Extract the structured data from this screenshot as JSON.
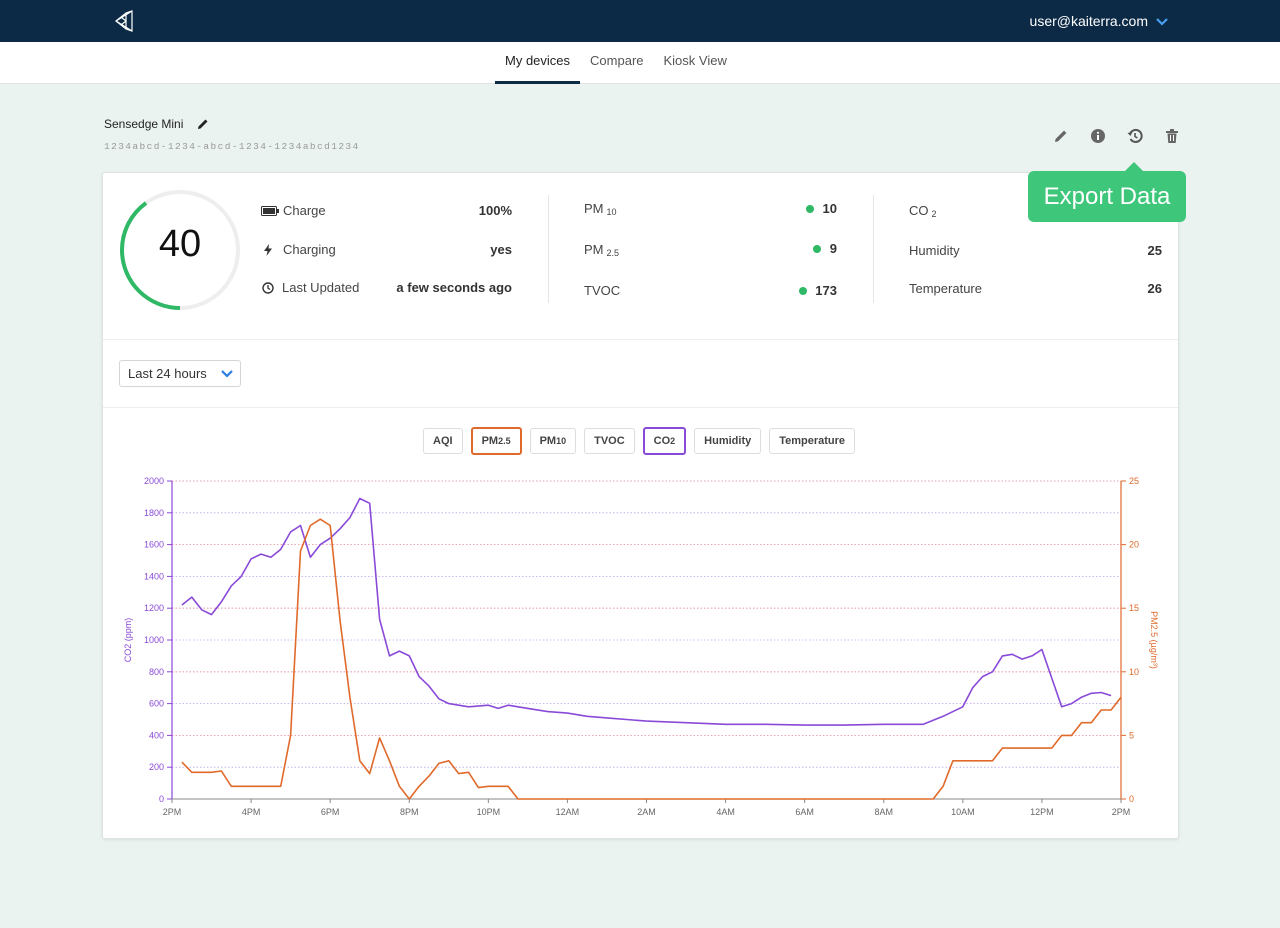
{
  "header": {
    "logo_icon": "kaiterra-logo-icon",
    "user_email": "user@kaiterra.com"
  },
  "nav": {
    "tabs": [
      {
        "label": "My devices",
        "active": true
      },
      {
        "label": "Compare",
        "active": false
      },
      {
        "label": "Kiosk View",
        "active": false
      }
    ]
  },
  "device": {
    "name": "Sensedge Mini",
    "id": "1234abcd-1234-abcd-1234-1234abcd1234"
  },
  "actions": [
    "edit-icon",
    "info-icon",
    "history-icon",
    "trash-icon"
  ],
  "tooltip": "Export Data",
  "gauge": {
    "value": "40",
    "fill_fraction": 0.4,
    "color": "#2fb865"
  },
  "status": {
    "charge_label": "Charge",
    "charge_value": "100%",
    "charging_label": "Charging",
    "charging_value": "yes",
    "updated_label": "Last Updated",
    "updated_value": "a few seconds ago"
  },
  "readings": {
    "pm10_label": "PM",
    "pm10_sub": "10",
    "pm10_value": "10",
    "pm25_label": "PM",
    "pm25_sub": "2.5",
    "pm25_value": "9",
    "tvoc_label": "TVOC",
    "tvoc_value": "173",
    "co2_label": "CO",
    "co2_sub": "2",
    "co2_value": "",
    "humidity_label": "Humidity",
    "humidity_value": "25",
    "temperature_label": "Temperature",
    "temperature_value": "26"
  },
  "range_select": {
    "label": "Last 24 hours"
  },
  "chips": {
    "aqi": "AQI",
    "pm25_main": "PM",
    "pm25_sub": "2.5",
    "pm10_main": "PM",
    "pm10_sub": "10",
    "tvoc": "TVOC",
    "co2_main": "CO",
    "co2_sub": "2",
    "humidity": "Humidity",
    "temperature": "Temperature"
  },
  "chart_data": {
    "type": "line",
    "x_ticks": [
      "2PM",
      "4PM",
      "6PM",
      "8PM",
      "10PM",
      "12AM",
      "2AM",
      "4AM",
      "6AM",
      "8AM",
      "10AM",
      "12PM",
      "2PM"
    ],
    "y_left": {
      "label": "CO2 (ppm)",
      "min": 0,
      "max": 2000,
      "ticks": [
        0,
        200,
        400,
        600,
        800,
        1000,
        1200,
        1400,
        1600,
        1800,
        2000
      ]
    },
    "y_right": {
      "label": "PM2.5 (µg/m³)",
      "min": 0,
      "max": 25,
      "ticks": [
        0,
        5,
        10,
        15,
        20,
        25
      ]
    },
    "x_range_hours": [
      0,
      24
    ],
    "series": [
      {
        "name": "CO2",
        "axis": "left",
        "color": "#8a4ad8",
        "points": [
          [
            0.25,
            1220
          ],
          [
            0.5,
            1270
          ],
          [
            0.75,
            1190
          ],
          [
            1.0,
            1160
          ],
          [
            1.25,
            1240
          ],
          [
            1.5,
            1340
          ],
          [
            1.75,
            1400
          ],
          [
            2.0,
            1510
          ],
          [
            2.25,
            1540
          ],
          [
            2.5,
            1520
          ],
          [
            2.75,
            1570
          ],
          [
            3.0,
            1680
          ],
          [
            3.25,
            1720
          ],
          [
            3.5,
            1520
          ],
          [
            3.75,
            1600
          ],
          [
            4.0,
            1640
          ],
          [
            4.25,
            1700
          ],
          [
            4.5,
            1770
          ],
          [
            4.75,
            1890
          ],
          [
            5.0,
            1860
          ],
          [
            5.25,
            1130
          ],
          [
            5.5,
            900
          ],
          [
            5.75,
            930
          ],
          [
            6.0,
            900
          ],
          [
            6.25,
            770
          ],
          [
            6.5,
            710
          ],
          [
            6.75,
            630
          ],
          [
            7.0,
            600
          ],
          [
            7.5,
            580
          ],
          [
            8.0,
            590
          ],
          [
            8.25,
            570
          ],
          [
            8.5,
            590
          ],
          [
            9.0,
            570
          ],
          [
            9.5,
            550
          ],
          [
            10.0,
            540
          ],
          [
            10.5,
            520
          ],
          [
            11.0,
            510
          ],
          [
            12.0,
            490
          ],
          [
            13.0,
            480
          ],
          [
            14.0,
            470
          ],
          [
            15.0,
            470
          ],
          [
            16.0,
            465
          ],
          [
            17.0,
            465
          ],
          [
            18.0,
            470
          ],
          [
            19.0,
            470
          ],
          [
            19.5,
            520
          ],
          [
            20.0,
            580
          ],
          [
            20.25,
            700
          ],
          [
            20.5,
            770
          ],
          [
            20.75,
            800
          ],
          [
            21.0,
            900
          ],
          [
            21.25,
            910
          ],
          [
            21.5,
            880
          ],
          [
            21.75,
            900
          ],
          [
            22.0,
            940
          ],
          [
            22.25,
            760
          ],
          [
            22.5,
            580
          ],
          [
            22.75,
            600
          ],
          [
            23.0,
            640
          ],
          [
            23.25,
            665
          ],
          [
            23.5,
            670
          ],
          [
            23.75,
            650
          ]
        ]
      },
      {
        "name": "PM2.5",
        "axis": "right",
        "color": "#e06a2b",
        "points": [
          [
            0.25,
            2.9
          ],
          [
            0.5,
            2.1
          ],
          [
            0.75,
            2.1
          ],
          [
            1.0,
            2.1
          ],
          [
            1.25,
            2.2
          ],
          [
            1.5,
            1.0
          ],
          [
            1.75,
            1.0
          ],
          [
            2.5,
            1.0
          ],
          [
            2.75,
            1.0
          ],
          [
            3.0,
            5.0
          ],
          [
            3.25,
            19.5
          ],
          [
            3.5,
            21.5
          ],
          [
            3.75,
            22.0
          ],
          [
            4.0,
            21.5
          ],
          [
            4.25,
            14.0
          ],
          [
            4.5,
            8.0
          ],
          [
            4.75,
            3.0
          ],
          [
            5.0,
            2.0
          ],
          [
            5.25,
            4.8
          ],
          [
            5.5,
            3.0
          ],
          [
            5.75,
            1.0
          ],
          [
            6.0,
            0
          ],
          [
            6.25,
            1.0
          ],
          [
            6.5,
            1.8
          ],
          [
            6.75,
            2.8
          ],
          [
            7.0,
            3.0
          ],
          [
            7.25,
            2.0
          ],
          [
            7.5,
            2.1
          ],
          [
            7.75,
            0.9
          ],
          [
            8.0,
            1.0
          ],
          [
            8.25,
            1.0
          ],
          [
            8.5,
            1.0
          ],
          [
            8.75,
            0
          ],
          [
            19.25,
            0
          ],
          [
            19.5,
            1.0
          ],
          [
            19.75,
            3.0
          ],
          [
            20.0,
            3.0
          ],
          [
            20.5,
            3.0
          ],
          [
            20.75,
            3.0
          ],
          [
            21.0,
            4.0
          ],
          [
            21.5,
            4.0
          ],
          [
            22.0,
            4.0
          ],
          [
            22.25,
            4.0
          ],
          [
            22.5,
            5.0
          ],
          [
            22.75,
            5.0
          ],
          [
            23.0,
            6.0
          ],
          [
            23.25,
            6.0
          ],
          [
            23.5,
            7.0
          ],
          [
            23.75,
            7.0
          ],
          [
            24.0,
            8.0
          ]
        ]
      }
    ]
  }
}
